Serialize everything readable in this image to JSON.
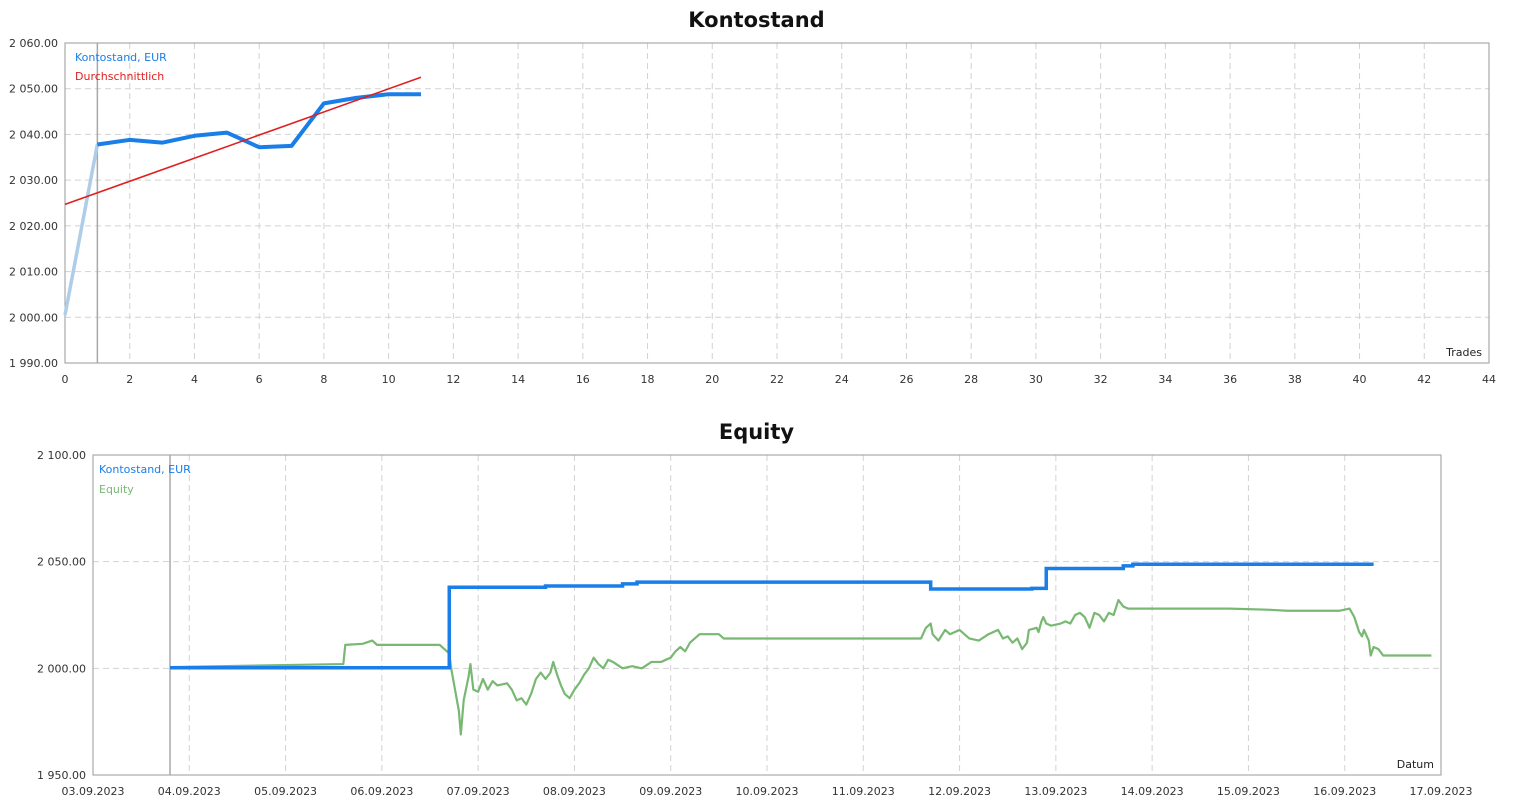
{
  "chart_data": [
    {
      "type": "line",
      "title": "Kontostand",
      "xlabel": "Trades",
      "xlim": [
        0,
        44
      ],
      "ylim": [
        1990,
        2060
      ],
      "grid": true,
      "legend_position": "top-left",
      "xticks": [
        "0",
        "2",
        "4",
        "6",
        "8",
        "10",
        "12",
        "14",
        "16",
        "18",
        "20",
        "22",
        "24",
        "26",
        "28",
        "30",
        "32",
        "34",
        "36",
        "38",
        "40",
        "42",
        "44"
      ],
      "yticks": [
        "1 990.00",
        "2 000.00",
        "2 010.00",
        "2 020.00",
        "2 030.00",
        "2 040.00",
        "2 050.00",
        "2 060.00"
      ],
      "series": [
        {
          "name": "Kontostand, EUR",
          "color": "#1a7ee8",
          "points": [
            [
              0,
              2000.5
            ],
            [
              1,
              2037.8
            ],
            [
              2,
              2038.8
            ],
            [
              3,
              2038.2
            ],
            [
              4,
              2039.7
            ],
            [
              5,
              2040.4
            ],
            [
              6,
              2037.2
            ],
            [
              7,
              2037.5
            ],
            [
              8,
              2046.8
            ],
            [
              9,
              2048.0
            ],
            [
              10,
              2048.8
            ],
            [
              11,
              2048.8
            ]
          ]
        },
        {
          "name": "Durchschnittlich",
          "color": "#e02020",
          "points": [
            [
              0,
              2024.7
            ],
            [
              11,
              2052.5
            ]
          ]
        }
      ],
      "marker_x": 1
    },
    {
      "type": "line",
      "title": "Equity",
      "xlabel": "Datum",
      "x_tick_labels": [
        "03.09.2023",
        "04.09.2023",
        "05.09.2023",
        "06.09.2023",
        "07.09.2023",
        "08.09.2023",
        "09.09.2023",
        "10.09.2023",
        "11.09.2023",
        "12.09.2023",
        "13.09.2023",
        "14.09.2023",
        "15.09.2023",
        "16.09.2023",
        "17.09.2023"
      ],
      "xlim_days": [
        3,
        17
      ],
      "ylim": [
        1950,
        2100
      ],
      "grid": true,
      "legend_position": "top-left",
      "yticks": [
        "1 950.00",
        "2 000.00",
        "2 050.00",
        "2 100.00"
      ],
      "series": [
        {
          "name": "Kontostand, EUR",
          "color": "#1a7ee8",
          "step": true,
          "points": [
            [
              3.8,
              2000.3
            ],
            [
              6.7,
              2000.3
            ],
            [
              6.7,
              2038
            ],
            [
              7.7,
              2038
            ],
            [
              7.7,
              2038.6
            ],
            [
              8.5,
              2038.6
            ],
            [
              8.5,
              2039.6
            ],
            [
              8.65,
              2039.6
            ],
            [
              8.65,
              2040.4
            ],
            [
              11.7,
              2040.4
            ],
            [
              11.7,
              2037.2
            ],
            [
              12.75,
              2037.2
            ],
            [
              12.75,
              2037.5
            ],
            [
              12.9,
              2037.5
            ],
            [
              12.9,
              2046.8
            ],
            [
              13.7,
              2046.8
            ],
            [
              13.7,
              2048
            ],
            [
              13.8,
              2048
            ],
            [
              13.8,
              2048.8
            ],
            [
              16.3,
              2048.8
            ]
          ]
        },
        {
          "name": "Equity",
          "color": "#78b872",
          "points": [
            [
              3.8,
              2000.6
            ],
            [
              5.6,
              2002
            ],
            [
              5.62,
              2011
            ],
            [
              5.8,
              2011.5
            ],
            [
              5.9,
              2013
            ],
            [
              5.95,
              2011
            ],
            [
              6.6,
              2011
            ],
            [
              6.7,
              2007
            ],
            [
              6.72,
              2000
            ],
            [
              6.76,
              1990
            ],
            [
              6.8,
              1980
            ],
            [
              6.82,
              1969
            ],
            [
              6.85,
              1985
            ],
            [
              6.9,
              1996
            ],
            [
              6.92,
              2002
            ],
            [
              6.95,
              1990
            ],
            [
              7.0,
              1989
            ],
            [
              7.05,
              1995
            ],
            [
              7.1,
              1990
            ],
            [
              7.15,
              1994
            ],
            [
              7.2,
              1992
            ],
            [
              7.3,
              1993
            ],
            [
              7.35,
              1990
            ],
            [
              7.4,
              1985
            ],
            [
              7.45,
              1986
            ],
            [
              7.5,
              1983
            ],
            [
              7.55,
              1988
            ],
            [
              7.6,
              1995
            ],
            [
              7.65,
              1998
            ],
            [
              7.7,
              1995
            ],
            [
              7.75,
              1998
            ],
            [
              7.78,
              2003
            ],
            [
              7.82,
              1997
            ],
            [
              7.86,
              1992
            ],
            [
              7.9,
              1988
            ],
            [
              7.95,
              1986
            ],
            [
              8.0,
              1990
            ],
            [
              8.05,
              1993
            ],
            [
              8.1,
              1997
            ],
            [
              8.15,
              2000
            ],
            [
              8.2,
              2005
            ],
            [
              8.25,
              2002
            ],
            [
              8.3,
              2000
            ],
            [
              8.35,
              2004
            ],
            [
              8.4,
              2003
            ],
            [
              8.5,
              2000
            ],
            [
              8.6,
              2001
            ],
            [
              8.7,
              2000
            ],
            [
              8.8,
              2003
            ],
            [
              8.9,
              2003
            ],
            [
              9.0,
              2005
            ],
            [
              9.05,
              2008
            ],
            [
              9.1,
              2010
            ],
            [
              9.15,
              2008
            ],
            [
              9.2,
              2012
            ],
            [
              9.25,
              2014
            ],
            [
              9.3,
              2016
            ],
            [
              9.5,
              2016
            ],
            [
              9.55,
              2014
            ],
            [
              11.6,
              2014
            ],
            [
              11.65,
              2019
            ],
            [
              11.7,
              2021
            ],
            [
              11.72,
              2016
            ],
            [
              11.78,
              2013
            ],
            [
              11.85,
              2018
            ],
            [
              11.9,
              2016
            ],
            [
              12.0,
              2018
            ],
            [
              12.1,
              2014
            ],
            [
              12.2,
              2013
            ],
            [
              12.3,
              2016
            ],
            [
              12.4,
              2018
            ],
            [
              12.45,
              2014
            ],
            [
              12.5,
              2015
            ],
            [
              12.55,
              2012
            ],
            [
              12.6,
              2014
            ],
            [
              12.65,
              2009
            ],
            [
              12.7,
              2012
            ],
            [
              12.72,
              2018
            ],
            [
              12.8,
              2019
            ],
            [
              12.82,
              2017
            ],
            [
              12.85,
              2022
            ],
            [
              12.87,
              2024
            ],
            [
              12.9,
              2021
            ],
            [
              12.95,
              2020
            ],
            [
              13.05,
              2021
            ],
            [
              13.1,
              2022
            ],
            [
              13.15,
              2021
            ],
            [
              13.2,
              2025
            ],
            [
              13.25,
              2026
            ],
            [
              13.3,
              2024
            ],
            [
              13.35,
              2019
            ],
            [
              13.4,
              2026
            ],
            [
              13.45,
              2025
            ],
            [
              13.5,
              2022
            ],
            [
              13.55,
              2026
            ],
            [
              13.6,
              2025
            ],
            [
              13.65,
              2032
            ],
            [
              13.7,
              2029
            ],
            [
              13.75,
              2028
            ],
            [
              14.8,
              2028
            ],
            [
              15.2,
              2027.5
            ],
            [
              15.4,
              2027
            ],
            [
              15.8,
              2027
            ],
            [
              15.95,
              2027
            ],
            [
              16.05,
              2028
            ],
            [
              16.1,
              2024
            ],
            [
              16.15,
              2017
            ],
            [
              16.18,
              2015
            ],
            [
              16.2,
              2018
            ],
            [
              16.25,
              2013
            ],
            [
              16.27,
              2006
            ],
            [
              16.3,
              2010
            ],
            [
              16.35,
              2009
            ],
            [
              16.4,
              2006
            ],
            [
              16.45,
              2006
            ],
            [
              16.9,
              2006
            ]
          ]
        }
      ],
      "marker_x": 3.8
    }
  ]
}
